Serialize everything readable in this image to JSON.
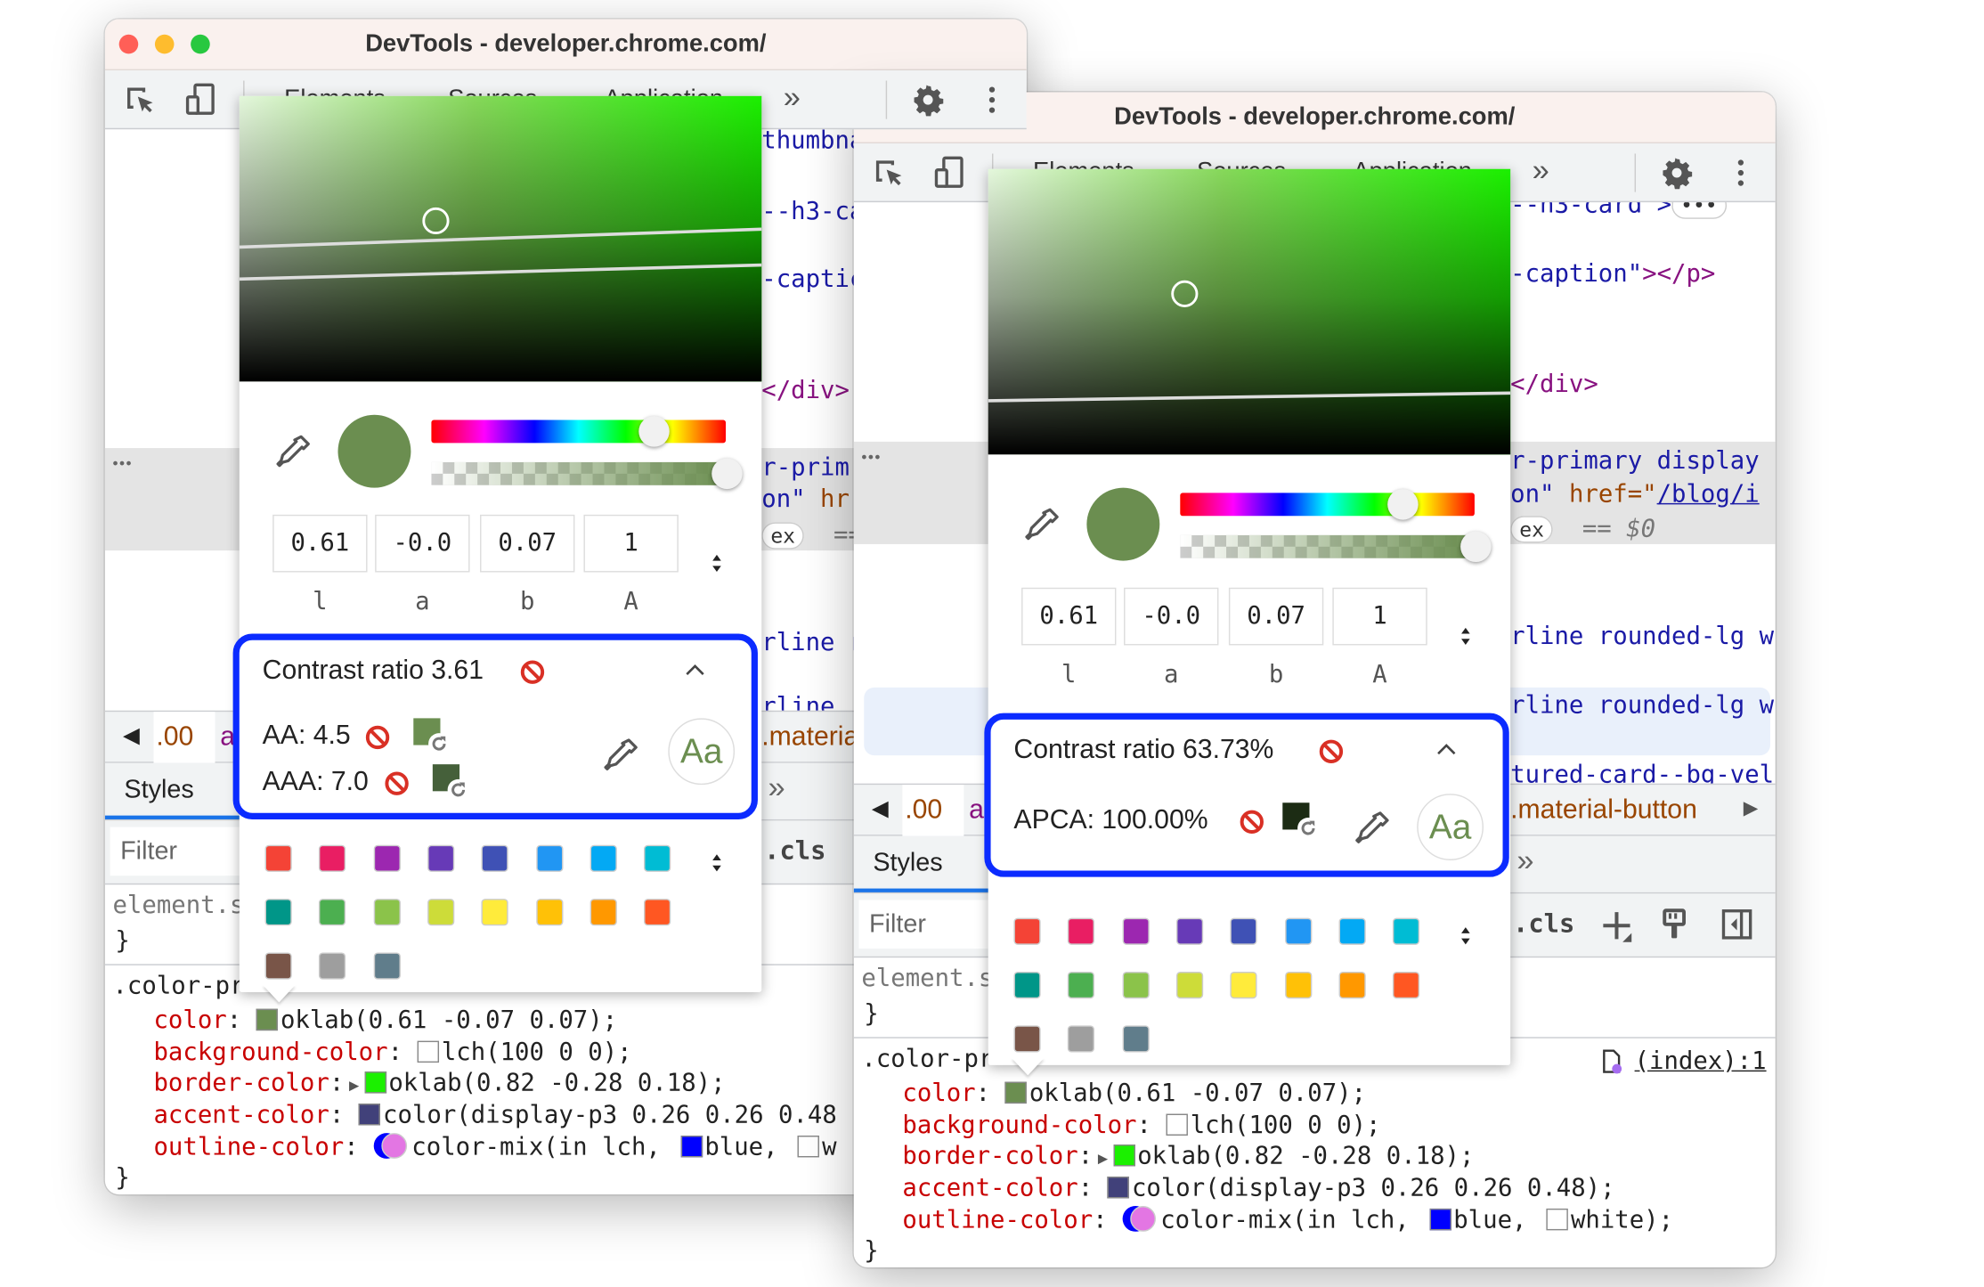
{
  "palette": [
    "#f44336",
    "#e91e63",
    "#9c27b0",
    "#673ab7",
    "#3f51b5",
    "#2196f3",
    "#03a9f4",
    "#00bcd4",
    "#009688",
    "#4caf50",
    "#8bc34a",
    "#cddc39",
    "#ffeb3b",
    "#ffc107",
    "#ff9800",
    "#ff5722",
    "#795548",
    "#9e9e9e",
    "#607d8b"
  ],
  "windows": [
    {
      "title": "DevTools - developer.chrome.com/",
      "tabs": [
        "Elements",
        "Sources",
        "Application"
      ],
      "more_tabs": "»",
      "ellipsis": "•••",
      "code_lines": [
        [
          {
            "t": "thumbna",
            "k": "val"
          }
        ],
        [
          {
            "t": "--h3-ca",
            "k": "val"
          }
        ],
        [
          {
            "t": "-captic",
            "k": "val"
          }
        ],
        [
          {
            "t": "</div>",
            "k": "tag"
          }
        ],
        [
          {
            "t": "r-prim",
            "k": "val"
          }
        ],
        [
          {
            "t": "on\"",
            "k": "val"
          },
          {
            "t": " hr",
            "k": "attr"
          }
        ],
        [
          {
            "t": "ex",
            "k": "pill"
          },
          {
            "t": "  ==",
            "k": "gray"
          }
        ],
        [
          {
            "t": "rline r",
            "k": "val"
          }
        ],
        [
          {
            "t": "rline",
            "k": "val"
          }
        ]
      ],
      "breadcrumb": {
        "left": "◀",
        "item1": ".00",
        "item2": "a",
        "item3": ".materia"
      },
      "styles_tab": "Styles",
      "panel_more": "»",
      "filter_placeholder": "Filter",
      "cls": ".cls",
      "element_style": "element.s",
      "close_brace": "}",
      "selector": ".color-pr",
      "css": [
        {
          "prop": "color",
          "value": "oklab(0.61 -0.07 0.07);",
          "swatch": "#6b8e50"
        },
        {
          "prop": "background-color",
          "value": "lch(100 0 0);",
          "swatch": "#ffffff"
        },
        {
          "prop": "border-color",
          "value": "oklab(0.82 -0.28 0.18);",
          "swatch": "#1bf000",
          "expand": true
        },
        {
          "prop": "accent-color",
          "value": "color(display-p3 0.26 0.26 0.48",
          "swatch": "#41417a"
        },
        {
          "prop": "outline-color",
          "value": "color-mix(in lch, ",
          "mix": true,
          "tail": [
            {
              "swatch": "#0000ff",
              "t": "blue, "
            },
            {
              "swatch": "#ffffff",
              "t": "w"
            }
          ]
        }
      ],
      "picker": {
        "current_color": "#6b8e50",
        "hue_percent": 75,
        "alpha_percent": 100,
        "inputs": [
          "0.61",
          "-0.0",
          "0.07",
          "1"
        ],
        "labels": [
          "l",
          "a",
          "b",
          "A"
        ],
        "contrast_title": "Contrast ratio 3.61",
        "rows": [
          "AA: 4.5",
          "AAA: 7.0"
        ],
        "aa_preview": "Aa"
      }
    },
    {
      "title": "DevTools - developer.chrome.com/",
      "tabs": [
        "Elements",
        "Sources",
        "Application"
      ],
      "more_tabs": "»",
      "ellipsis": "•••",
      "code_lines": [
        [
          {
            "t": "--h3-card >",
            "k": "val"
          },
          {
            "t": "•••",
            "k": "pill"
          }
        ],
        [
          {
            "t": "-caption\"",
            "k": "val"
          },
          {
            "t": "></p>",
            "k": "tag"
          }
        ],
        [
          {
            "t": "</div>",
            "k": "tag"
          }
        ],
        [
          {
            "t": "r-primary display",
            "k": "val"
          }
        ],
        [
          {
            "t": "on\"",
            "k": "val"
          },
          {
            "t": " href=\"",
            "k": "attr"
          },
          {
            "t": "/blog/i",
            "k": "link"
          }
        ],
        [
          {
            "t": "ex",
            "k": "pill"
          },
          {
            "t": "  == ",
            "k": "gray"
          },
          {
            "t": "$0",
            "k": "ital"
          }
        ],
        [
          {
            "t": "rline rounded-lg w",
            "k": "val"
          }
        ],
        [
          {
            "t": "rline rounded-lg w",
            "k": "val"
          }
        ],
        [
          {
            "t": "tured-card--bg-vel",
            "k": "val"
          }
        ]
      ],
      "breadcrumb": {
        "left": "◀",
        "item1": ".00",
        "item2": "a",
        "item3": ".material-button",
        "right": "▶"
      },
      "styles_tab": "Styles",
      "panel_more": "»",
      "filter_placeholder": "Filter",
      "cls": ".cls",
      "element_style": "element.s",
      "close_brace": "}",
      "selector": ".color-pr",
      "source_link": "(index):1",
      "css": [
        {
          "prop": "color",
          "value": "oklab(0.61 -0.07 0.07);",
          "swatch": "#6b8e50"
        },
        {
          "prop": "background-color",
          "value": "lch(100 0 0);",
          "swatch": "#ffffff"
        },
        {
          "prop": "border-color",
          "value": "oklab(0.82 -0.28 0.18);",
          "swatch": "#1bf000",
          "expand": true
        },
        {
          "prop": "accent-color",
          "value": "color(display-p3 0.26 0.26 0.48);",
          "swatch": "#41417a"
        },
        {
          "prop": "outline-color",
          "value": "color-mix(in lch, ",
          "mix": true,
          "tail": [
            {
              "swatch": "#0000ff",
              "t": "blue, "
            },
            {
              "swatch": "#ffffff",
              "t": "white);"
            }
          ]
        }
      ],
      "picker": {
        "current_color": "#6b8e50",
        "hue_percent": 75,
        "alpha_percent": 100,
        "inputs": [
          "0.61",
          "-0.0",
          "0.07",
          "1"
        ],
        "labels": [
          "l",
          "a",
          "b",
          "A"
        ],
        "contrast_title": "Contrast ratio 63.73%",
        "rows": [
          "APCA: 100.00%"
        ],
        "aa_preview": "Aa"
      }
    }
  ]
}
